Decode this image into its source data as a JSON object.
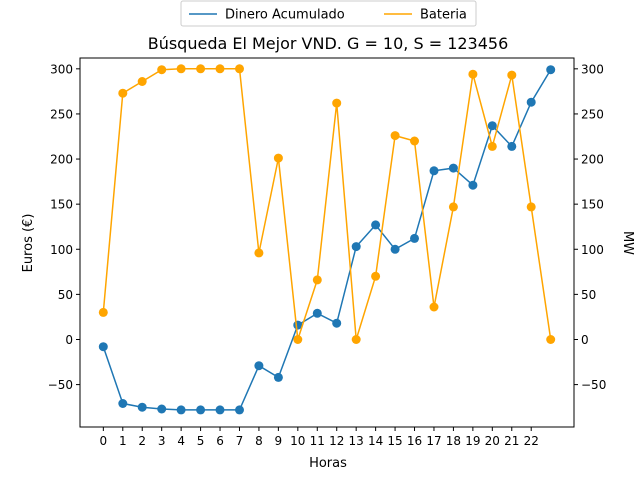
{
  "chart_data": {
    "type": "line",
    "title": "Búsqueda El Mejor VND. G = 10, S = 123456",
    "xlabel": "Horas",
    "ylabel": "Euros (€)",
    "y2label": "MW",
    "x": [
      0,
      1,
      2,
      3,
      4,
      5,
      6,
      7,
      8,
      9,
      10,
      11,
      12,
      13,
      14,
      15,
      16,
      17,
      18,
      19,
      20,
      21,
      22,
      23
    ],
    "xtick_labels": [
      "0",
      "1",
      "2",
      "3",
      "4",
      "5",
      "6",
      "7",
      "8",
      "9",
      "10",
      "11",
      "12",
      "13",
      "14",
      "15",
      "16",
      "17",
      "18",
      "19",
      "20",
      "21",
      "22"
    ],
    "xlim": [
      -1.2,
      24.2
    ],
    "ylim": [
      -97,
      312
    ],
    "y_ticks": [
      -50,
      0,
      50,
      100,
      150,
      200,
      250,
      300
    ],
    "y2_ticks": [
      -50,
      0,
      50,
      100,
      150,
      200,
      250,
      300
    ],
    "legend_position": "top-center",
    "grid": false,
    "series": [
      {
        "name": "Dinero Acumulado",
        "color": "#1f77b4",
        "axis": "left",
        "values": [
          -8,
          -71,
          -75,
          -77,
          -78,
          -78,
          -78,
          -78,
          -29,
          -42,
          16,
          29,
          18,
          103,
          127,
          100,
          112,
          187,
          190,
          171,
          237,
          214,
          263,
          299
        ]
      },
      {
        "name": "Bateria",
        "color": "#ffa500",
        "axis": "right",
        "values": [
          30,
          273,
          286,
          299,
          300,
          300,
          300,
          300,
          96,
          201,
          0,
          66,
          262,
          0,
          70,
          226,
          220,
          36,
          147,
          294,
          214,
          293,
          147,
          0
        ]
      }
    ]
  }
}
